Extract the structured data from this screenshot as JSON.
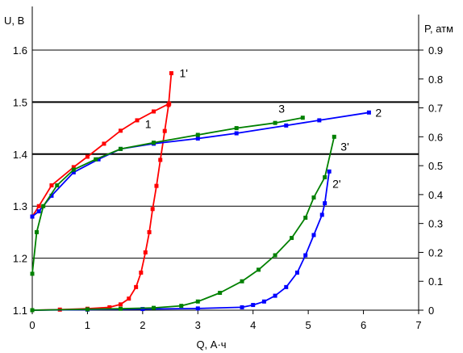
{
  "chart_data": {
    "type": "line",
    "xlabel": "Q, А·ч",
    "ylabel_left": "U, В",
    "ylabel_right": "P, атм",
    "xlim": [
      0,
      7
    ],
    "ylim_left": [
      1.1,
      1.6
    ],
    "ylim_right": [
      0,
      0.9
    ],
    "x_ticks": [
      "0",
      "1",
      "2",
      "3",
      "4",
      "5",
      "6",
      "7"
    ],
    "left_ticks": [
      "1.1",
      "1.2",
      "1.3",
      "1.4",
      "1.5",
      "1.6"
    ],
    "right_ticks": [
      "0",
      "0.1",
      "0.2",
      "0.3",
      "0.4",
      "0.5",
      "0.6",
      "0.7",
      "0.8",
      "0.9"
    ],
    "grid": "horizontal",
    "series": [
      {
        "name": "1",
        "axis": "left",
        "color": "#ff0000",
        "x": [
          0,
          0.12,
          0.35,
          0.75,
          1.0,
          1.3,
          1.6,
          1.9,
          2.2,
          2.48
        ],
        "y": [
          1.28,
          1.3,
          1.34,
          1.375,
          1.395,
          1.42,
          1.445,
          1.465,
          1.482,
          1.497
        ]
      },
      {
        "name": "1'",
        "axis": "right",
        "color": "#ff0000",
        "x": [
          0,
          0.5,
          1.0,
          1.4,
          1.6,
          1.75,
          1.88,
          1.97,
          2.05,
          2.12,
          2.18,
          2.25,
          2.32,
          2.4,
          2.47,
          2.52
        ],
        "y": [
          0,
          0.002,
          0.005,
          0.01,
          0.02,
          0.04,
          0.08,
          0.13,
          0.2,
          0.27,
          0.35,
          0.43,
          0.52,
          0.62,
          0.71,
          0.82
        ]
      },
      {
        "name": "2",
        "axis": "left",
        "color": "#0000ff",
        "x": [
          0,
          0.12,
          0.35,
          0.75,
          1.2,
          1.6,
          2.2,
          3.0,
          3.7,
          4.6,
          5.2,
          6.1
        ],
        "y": [
          1.28,
          1.29,
          1.32,
          1.365,
          1.39,
          1.41,
          1.42,
          1.43,
          1.44,
          1.455,
          1.465,
          1.48
        ]
      },
      {
        "name": "2'",
        "axis": "right",
        "color": "#0000ff",
        "x": [
          0,
          1.0,
          2.0,
          3.0,
          3.8,
          4.0,
          4.2,
          4.4,
          4.6,
          4.8,
          4.95,
          5.1,
          5.25,
          5.3,
          5.38
        ],
        "y": [
          0,
          0.002,
          0.004,
          0.006,
          0.01,
          0.018,
          0.03,
          0.05,
          0.08,
          0.13,
          0.19,
          0.26,
          0.33,
          0.37,
          0.48
        ]
      },
      {
        "name": "3",
        "axis": "left",
        "color": "#008000",
        "x": [
          0,
          0.08,
          0.2,
          0.45,
          0.75,
          1.15,
          1.6,
          2.2,
          3.0,
          3.7,
          4.4,
          4.9
        ],
        "y": [
          1.17,
          1.25,
          1.3,
          1.34,
          1.37,
          1.39,
          1.41,
          1.422,
          1.437,
          1.45,
          1.46,
          1.47
        ]
      },
      {
        "name": "3'",
        "axis": "right",
        "color": "#008000",
        "x": [
          0,
          1.0,
          1.6,
          2.2,
          2.7,
          3.0,
          3.4,
          3.8,
          4.1,
          4.4,
          4.7,
          4.95,
          5.1,
          5.3,
          5.47
        ],
        "y": [
          0,
          0.003,
          0.005,
          0.008,
          0.015,
          0.03,
          0.06,
          0.1,
          0.14,
          0.19,
          0.25,
          0.32,
          0.39,
          0.46,
          0.6
        ]
      }
    ]
  }
}
